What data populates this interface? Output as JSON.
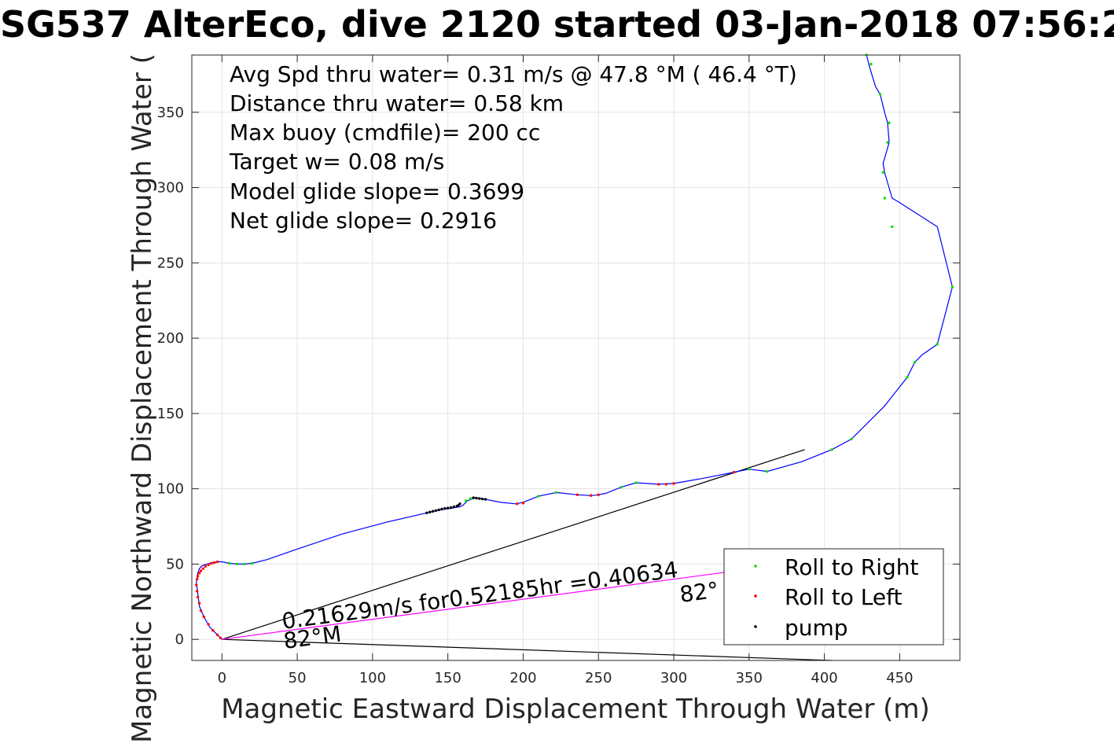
{
  "chart_data": {
    "type": "line",
    "title": "SG537 AlterEco, dive 2120 started 03-Jan-2018 07:56:2",
    "xlabel": "Magnetic Eastward Displacement Through Water (m)",
    "ylabel": "Magnetic Northward Displacement Through Water (",
    "xlim": [
      -20,
      490
    ],
    "ylim": [
      -14,
      388
    ],
    "xticks": [
      0,
      50,
      100,
      150,
      200,
      250,
      300,
      350,
      400,
      450
    ],
    "yticks": [
      0,
      50,
      100,
      150,
      200,
      250,
      300,
      350
    ],
    "grid": true,
    "annotations": [
      "Avg Spd thru water=  0.31 m/s @  47.8 °M ( 46.4 °T)",
      "Distance thru water=  0.58 km",
      "Max buoy (cmdfile)= 200 cc",
      "Target w= 0.08 m/s",
      "Model glide slope= 0.3699",
      "Net glide slope= 0.2916"
    ],
    "current_label": "0.21629m/s for0.52185hr =0.40634",
    "bearing_label_1": "82°M",
    "bearing_label_2": "82°",
    "legend": {
      "placement": "bottom-right",
      "entries": [
        {
          "label": "Roll to Right",
          "color": "#00e000"
        },
        {
          "label": "Roll to Left",
          "color": "#ff0000"
        },
        {
          "label": "pump",
          "color": "#000000"
        }
      ]
    },
    "track": {
      "name": "",
      "color": "#0000ff",
      "x": [
        0,
        -3,
        -8,
        -12,
        -15,
        -16,
        -17,
        -16,
        -15,
        -13,
        -10,
        -6,
        -2,
        0,
        5,
        10,
        15,
        20,
        30,
        50,
        80,
        110,
        136,
        145,
        152,
        158,
        160,
        163,
        168,
        175,
        185,
        195,
        200,
        210,
        222,
        236,
        245,
        250,
        255,
        265,
        275,
        290,
        300,
        320,
        340,
        350,
        362,
        385,
        405,
        418,
        440,
        455,
        460,
        465,
        475,
        485,
        475,
        450,
        445,
        440,
        439,
        443,
        442,
        440,
        437,
        434,
        430,
        428
      ],
      "y": [
        0,
        3,
        8,
        15,
        22,
        30,
        38,
        44,
        47,
        49,
        50,
        51,
        51.5,
        51.5,
        50.5,
        50,
        50,
        50.5,
        53,
        60,
        70,
        78,
        84,
        86,
        87,
        88,
        89,
        92,
        94,
        93,
        91,
        90,
        91,
        95,
        97.5,
        96,
        95.5,
        96,
        97,
        101,
        104,
        103,
        103.5,
        107,
        111,
        113,
        111.5,
        118,
        126,
        133,
        155,
        174,
        184,
        189,
        196,
        234,
        274,
        290,
        293,
        310,
        316,
        330,
        343,
        350,
        362,
        367,
        380,
        388
      ]
    },
    "roll_right_pts": {
      "x": [
        5,
        10,
        15,
        20,
        162,
        165,
        210,
        222,
        265,
        275,
        350,
        362,
        405,
        418,
        455,
        460,
        475,
        485,
        445,
        442,
        439,
        440,
        443,
        437,
        428,
        431
      ],
      "y": [
        50.5,
        50,
        50,
        50.5,
        92,
        93.5,
        95,
        97.5,
        101,
        104,
        113,
        111.5,
        126,
        133,
        174,
        184,
        196,
        234,
        274,
        330,
        310,
        293,
        343,
        362,
        388,
        382
      ]
    },
    "roll_left_pts": {
      "x": [
        -1,
        -3,
        -6,
        -9,
        -12,
        -14,
        -15,
        -16,
        -16.5,
        -17,
        -16.5,
        -16,
        -15,
        -14,
        -12.5,
        -11,
        -9,
        -7,
        -5,
        -3,
        196,
        200,
        236,
        245,
        250,
        290,
        295,
        300,
        340
      ],
      "y": [
        1,
        3,
        6,
        10,
        15,
        19,
        24,
        28,
        32,
        36,
        40,
        42,
        44,
        45.5,
        47,
        48.5,
        49.5,
        50.5,
        51,
        51.5,
        90,
        90.5,
        96,
        95.5,
        96,
        103,
        103,
        103.5,
        111
      ]
    },
    "pump_pts": {
      "x": [
        136,
        138,
        140,
        142,
        144,
        146,
        148,
        150,
        152,
        154,
        156,
        157,
        158,
        167,
        169,
        171,
        173,
        175
      ],
      "y": [
        84,
        84.5,
        85,
        85.5,
        86,
        86.5,
        87,
        87.2,
        87.5,
        88,
        88.5,
        89,
        90,
        94,
        93.8,
        93.5,
        93.2,
        93
      ]
    },
    "reference_lines": [
      {
        "color": "#000000",
        "x": [
          0,
          387
        ],
        "y": [
          0,
          126
        ]
      },
      {
        "color": "#000000",
        "x": [
          0,
          405
        ],
        "y": [
          0,
          -14
        ]
      },
      {
        "color": "#ff00ff",
        "x": [
          0,
          405
        ],
        "y": [
          0,
          54
        ]
      }
    ]
  }
}
